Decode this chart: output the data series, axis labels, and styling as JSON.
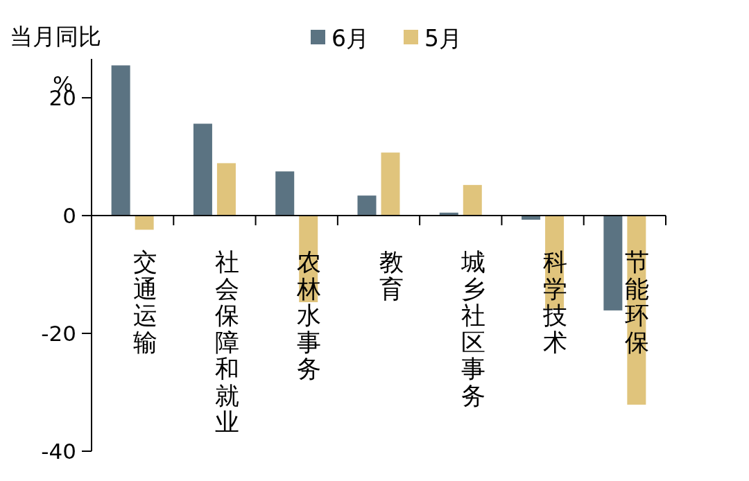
{
  "chart_data": {
    "type": "bar",
    "ylabel": "当月同比",
    "annotations": [
      "%"
    ],
    "categories": [
      "交通运输",
      "社会保障和就业",
      "农林水事务",
      "教育",
      "城乡社区事务",
      "科学技术",
      "节能环保"
    ],
    "series": [
      {
        "name": "6月",
        "color": "#5b7382",
        "values": [
          25.5,
          15.6,
          7.5,
          3.4,
          0.5,
          -0.7,
          -16.1
        ]
      },
      {
        "name": "5月",
        "color": "#e0c47c",
        "values": [
          -2.4,
          8.9,
          -14.7,
          10.7,
          5.2,
          -15.8,
          -32.1
        ]
      }
    ],
    "ylim": [
      -40,
      26.6
    ],
    "yticks": [
      -40,
      -20,
      0,
      20
    ],
    "grid": false,
    "legend": "top"
  }
}
